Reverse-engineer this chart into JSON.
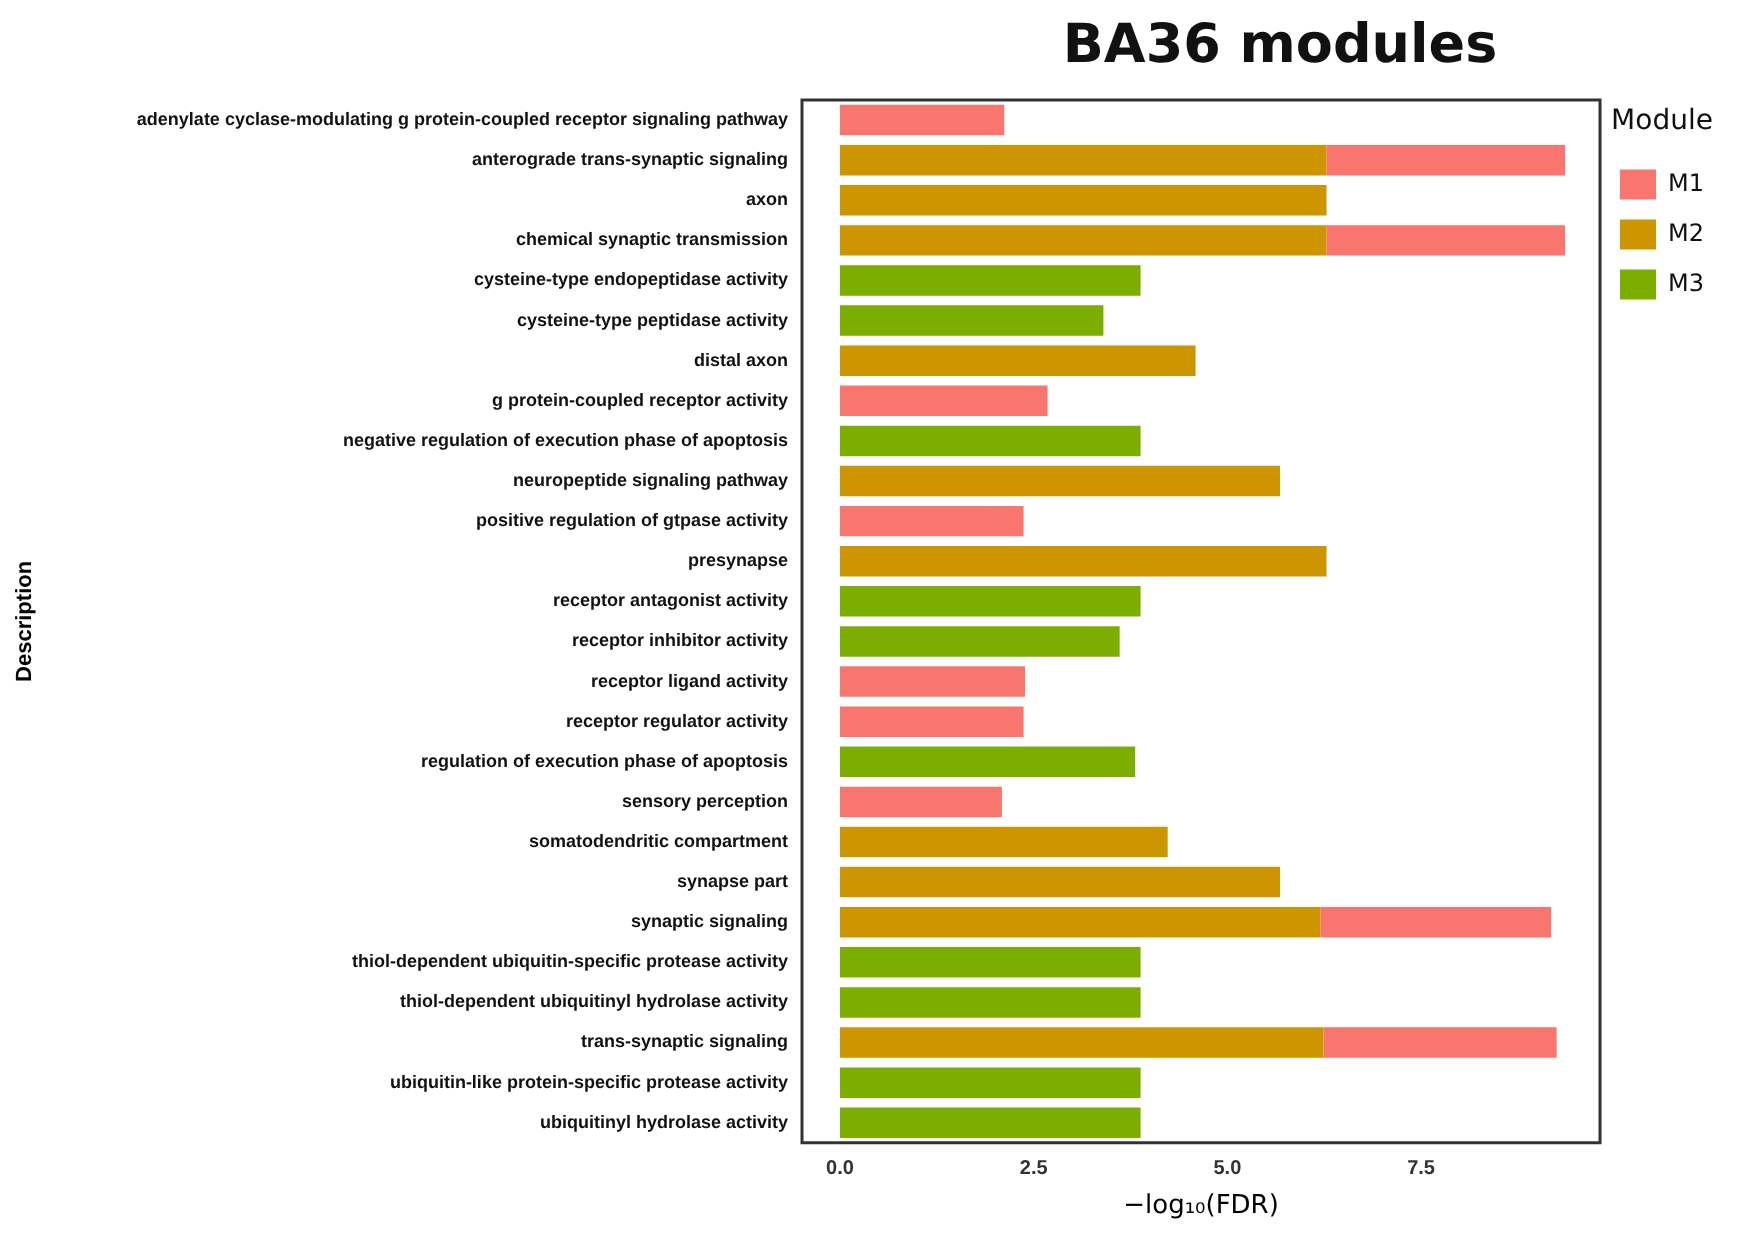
{
  "chart_data": {
    "type": "bar",
    "title": "BA36 modules",
    "xlabel": "−log₁₀(FDR)",
    "ylabel": "Description",
    "legend_title": "Module",
    "orientation": "horizontal",
    "stacked": true,
    "grid": false,
    "legend": "right",
    "categories": [
      "adenylate cyclase-modulating g protein-coupled receptor signaling pathway",
      "anterograde trans-synaptic signaling",
      "axon",
      "chemical synaptic transmission",
      "cysteine-type endopeptidase activity",
      "cysteine-type peptidase activity",
      "distal axon",
      "g protein-coupled receptor activity",
      "negative regulation of execution phase of apoptosis",
      "neuropeptide signaling pathway",
      "positive regulation of gtpase activity",
      "presynapse",
      "receptor antagonist activity",
      "receptor inhibitor activity",
      "receptor ligand activity",
      "receptor regulator activity",
      "regulation of execution phase of apoptosis",
      "sensory perception",
      "somatodendritic compartment",
      "synapse part",
      "synaptic signaling",
      "thiol-dependent ubiquitin-specific protease activity",
      "thiol-dependent ubiquitinyl hydrolase activity",
      "trans-synaptic signaling",
      "ubiquitin-like protein-specific protease activity",
      "ubiquitinyl hydrolase activity"
    ],
    "series": [
      {
        "name": "M2",
        "color": "#cd9600",
        "values": [
          null,
          6.28,
          6.28,
          6.28,
          null,
          null,
          4.59,
          null,
          null,
          5.68,
          null,
          6.28,
          null,
          null,
          null,
          null,
          null,
          null,
          4.23,
          5.68,
          6.2,
          null,
          null,
          6.24,
          null,
          null
        ]
      },
      {
        "name": "M1",
        "color": "#f8766d",
        "values": [
          2.12,
          3.08,
          null,
          3.08,
          null,
          null,
          null,
          2.68,
          null,
          null,
          2.37,
          null,
          null,
          null,
          2.39,
          2.37,
          null,
          2.09,
          null,
          null,
          2.98,
          null,
          null,
          3.01,
          null,
          null
        ]
      },
      {
        "name": "M3",
        "color": "#7cae00",
        "values": [
          null,
          null,
          null,
          null,
          3.88,
          3.4,
          null,
          null,
          3.88,
          null,
          null,
          null,
          3.88,
          3.61,
          null,
          null,
          3.81,
          null,
          null,
          null,
          null,
          3.88,
          3.88,
          null,
          3.88,
          3.88
        ]
      }
    ],
    "xlim": [
      -0.49,
      9.81
    ],
    "xticks": [
      {
        "value": 0,
        "label": "0.0"
      },
      {
        "value": 2.5,
        "label": "2.5"
      },
      {
        "value": 5,
        "label": "5.0"
      },
      {
        "value": 7.5,
        "label": "7.5"
      }
    ]
  }
}
